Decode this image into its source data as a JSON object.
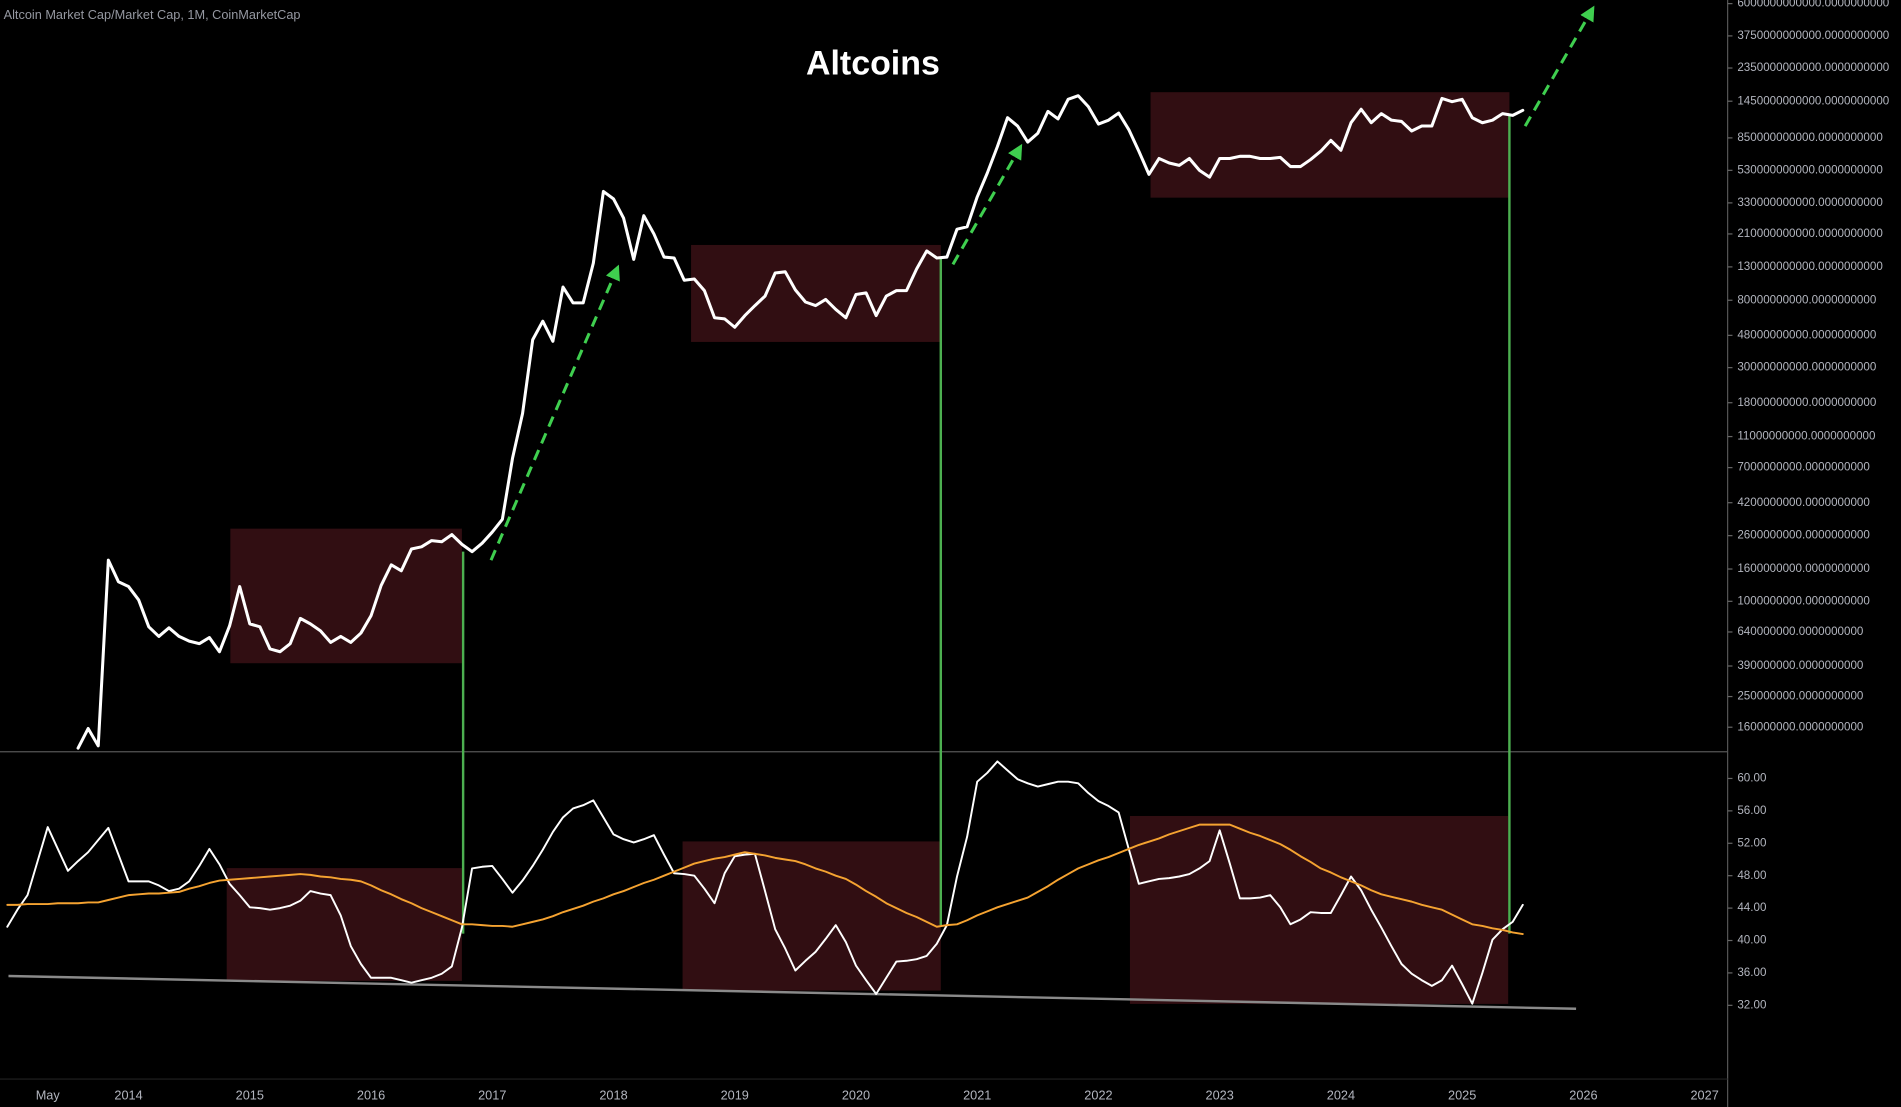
{
  "chart_data": [
    {
      "type": "line",
      "title": "Altcoins",
      "subtitle": "Altcoin Market Cap/Market Cap, 1M, CoinMarketCap",
      "log_scale": true,
      "categories": [
        null,
        null,
        null,
        null,
        null,
        "May",
        null,
        null,
        null,
        null,
        null,
        null,
        null,
        "2014",
        null,
        null,
        null,
        null,
        null,
        null,
        null,
        null,
        null,
        null,
        null,
        "2015",
        null,
        null,
        null,
        null,
        null,
        null,
        null,
        null,
        null,
        null,
        null,
        "2016",
        null,
        null,
        null,
        null,
        null,
        null,
        null,
        null,
        null,
        null,
        null,
        "2017",
        null,
        null,
        null,
        null,
        null,
        null,
        null,
        null,
        null,
        null,
        null,
        "2018",
        null,
        null,
        null,
        null,
        null,
        null,
        null,
        null,
        null,
        null,
        null,
        "2019",
        null,
        null,
        null,
        null,
        null,
        null,
        null,
        null,
        null,
        null,
        null,
        "2020",
        null,
        null,
        null,
        null,
        null,
        null,
        null,
        null,
        null,
        null,
        null,
        "2021",
        null,
        null,
        null,
        null,
        null,
        null,
        null,
        null,
        null,
        null,
        null,
        "2022",
        null,
        null,
        null,
        null,
        null,
        null,
        null,
        null,
        null,
        null,
        null,
        "2023",
        null,
        null,
        null,
        null,
        null,
        null,
        null,
        null,
        null,
        null,
        null,
        "2024",
        null,
        null,
        null,
        null,
        null,
        null,
        null,
        null,
        null,
        null,
        null,
        "2025",
        null,
        null,
        null,
        null,
        null,
        null,
        null,
        null,
        null,
        null,
        null,
        "2026",
        null,
        null,
        null,
        null,
        null,
        null,
        null,
        null,
        null,
        null,
        null,
        "2027",
        null
      ],
      "series": [
        {
          "color": "#ffffff",
          "values": [
            null,
            null,
            null,
            null,
            null,
            null,
            null,
            null,
            118000000.0,
            157000000.0,
            122000000.0,
            1820000000.0,
            1330000000.0,
            1240000000.0,
            1020000000.0,
            690000000.0,
            600000000.0,
            680000000.0,
            600000000.0,
            560000000.0,
            540000000.0,
            590000000.0,
            480000000.0,
            700000000.0,
            1240000000.0,
            720000000.0,
            690000000.0,
            500000000.0,
            480000000.0,
            540000000.0,
            780000000.0,
            720000000.0,
            650000000.0,
            550000000.0,
            600000000.0,
            550000000.0,
            630000000.0,
            810000000.0,
            1260000000.0,
            1700000000.0,
            1560000000.0,
            2140000000.0,
            2210000000.0,
            2420000000.0,
            2380000000.0,
            2640000000.0,
            2290000000.0,
            2060000000.0,
            2330000000.0,
            2740000000.0,
            3300000000.0,
            8000000000.0,
            15400000000.0,
            45000000000.0,
            59000000000.0,
            44000000000.0,
            97000000000.0,
            77000000000.0,
            77000000000.0,
            137000000000.0,
            390000000000.0,
            350000000000.0,
            264000000000.0,
            145000000000.0,
            274000000000.0,
            210000000000.0,
            150000000000.0,
            148000000000.0,
            107000000000.0,
            109000000000.0,
            92000000000.0,
            62000000000.0,
            61000000000.0,
            54000000000.0,
            64000000000.0,
            74000000000.0,
            85000000000.0,
            119000000000.0,
            121000000000.0,
            93000000000.0,
            78000000000.0,
            74000000000.0,
            81000000000.0,
            70000000000.0,
            62000000000.0,
            87000000000.0,
            89000000000.0,
            64000000000.0,
            85000000000.0,
            92000000000.0,
            92000000000.0,
            126000000000.0,
            164000000000.0,
            148000000000.0,
            150000000000.0,
            225000000000.0,
            233000000000.0,
            360000000000.0,
            510000000000.0,
            750000000000.0,
            1140000000000.0,
            1010000000000.0,
            800000000000.0,
            910000000000.0,
            1250000000000.0,
            1120000000000.0,
            1490000000000.0,
            1570000000000.0,
            1340000000000.0,
            1040000000000.0,
            1100000000000.0,
            1220000000000.0,
            960000000000.0,
            700000000000.0,
            500000000000.0,
            630000000000.0,
            590000000000.0,
            570000000000.0,
            630000000000.0,
            530000000000.0,
            480000000000.0,
            630000000000.0,
            630000000000.0,
            650000000000.0,
            650000000000.0,
            630000000000.0,
            630000000000.0,
            640000000000.0,
            560000000000.0,
            560000000000.0,
            620000000000.0,
            700000000000.0,
            820000000000.0,
            710000000000.0,
            1060000000000.0,
            1290000000000.0,
            1060000000000.0,
            1210000000000.0,
            1100000000000.0,
            1080000000000.0,
            940000000000.0,
            1010000000000.0,
            1010000000000.0,
            1510000000000.0,
            1440000000000.0,
            1490000000000.0,
            1140000000000.0,
            1060000000000.0,
            1100000000000.0,
            1210000000000.0,
            1180000000000.0,
            1270000000000.0,
            null,
            null,
            null,
            null,
            null,
            null,
            null,
            null,
            null,
            null,
            null,
            null,
            null,
            null,
            null,
            null,
            null,
            null,
            null
          ]
        }
      ],
      "ylim": [
        112000000.0,
        6320000000000.0
      ],
      "yticks": [
        {
          "value": 6000000000000,
          "label": "6000000000000.0000000000"
        },
        {
          "value": 3750000000000,
          "label": "3750000000000.0000000000"
        },
        {
          "value": 2350000000000,
          "label": "2350000000000.0000000000"
        },
        {
          "value": 1450000000000,
          "label": "1450000000000.0000000000"
        },
        {
          "value": 850000000000,
          "label": "850000000000.0000000000"
        },
        {
          "value": 530000000000,
          "label": "530000000000.0000000000"
        },
        {
          "value": 330000000000,
          "label": "330000000000.0000000000"
        },
        {
          "value": 210000000000,
          "label": "210000000000.0000000000"
        },
        {
          "value": 130000000000,
          "label": "130000000000.0000000000"
        },
        {
          "value": 80000000000,
          "label": "80000000000.0000000000"
        },
        {
          "value": 48000000000,
          "label": "48000000000.0000000000"
        },
        {
          "value": 30000000000,
          "label": "30000000000.0000000000"
        },
        {
          "value": 18000000000,
          "label": "18000000000.0000000000"
        },
        {
          "value": 11000000000,
          "label": "11000000000.0000000000"
        },
        {
          "value": 7000000000,
          "label": "7000000000.0000000000"
        },
        {
          "value": 4200000000,
          "label": "4200000000.0000000000"
        },
        {
          "value": 2600000000,
          "label": "2600000000.0000000000"
        },
        {
          "value": 1600000000,
          "label": "1600000000.0000000000"
        },
        {
          "value": 1000000000,
          "label": "1000000000.0000000000"
        },
        {
          "value": 640000000,
          "label": "640000000.0000000000"
        },
        {
          "value": 390000000,
          "label": "390000000.0000000000"
        },
        {
          "value": 250000000,
          "label": "250000000.0000000000"
        },
        {
          "value": 160000000,
          "label": "160000000.0000000000"
        }
      ]
    },
    {
      "type": "line",
      "series": [
        {
          "color": "#ffffff",
          "values": [
            null,
            41.7,
            43.8,
            45.6,
            49.8,
            54.0,
            51.3,
            48.6,
            49.8,
            50.9,
            52.4,
            53.9,
            50.6,
            47.3,
            47.3,
            47.3,
            46.8,
            46.1,
            46.4,
            47.3,
            49.2,
            51.3,
            49.4,
            47.0,
            45.6,
            44.1,
            44.0,
            43.8,
            44.0,
            44.3,
            44.9,
            46.1,
            45.8,
            45.6,
            43.1,
            39.3,
            37.1,
            35.4,
            35.4,
            35.4,
            35.1,
            34.8,
            35.1,
            35.4,
            35.9,
            36.8,
            41.6,
            48.9,
            49.1,
            49.2,
            47.6,
            45.9,
            47.4,
            49.2,
            51.2,
            53.4,
            55.2,
            56.3,
            56.7,
            57.3,
            55.2,
            53.1,
            52.5,
            52.1,
            52.5,
            53.0,
            50.6,
            48.3,
            48.2,
            48.0,
            46.4,
            44.6,
            48.3,
            50.4,
            50.6,
            50.7,
            46.1,
            41.4,
            39.0,
            36.3,
            37.5,
            38.6,
            40.2,
            41.9,
            39.8,
            36.9,
            35.1,
            33.4,
            35.4,
            37.4,
            37.5,
            37.7,
            38.1,
            39.6,
            41.9,
            47.9,
            52.8,
            59.6,
            60.7,
            62.1,
            61.0,
            59.9,
            59.4,
            59.0,
            59.3,
            59.6,
            59.6,
            59.4,
            58.2,
            57.2,
            56.6,
            55.8,
            51.3,
            47.0,
            47.3,
            47.6,
            47.7,
            47.9,
            48.2,
            48.9,
            49.8,
            53.6,
            49.5,
            45.2,
            45.2,
            45.3,
            45.6,
            44.1,
            42.0,
            42.6,
            43.5,
            43.4,
            43.4,
            45.6,
            47.9,
            46.2,
            43.8,
            41.6,
            39.3,
            37.1,
            35.9,
            35.1,
            34.4,
            35.1,
            36.9,
            34.6,
            32.2,
            36.0,
            40.1,
            41.4,
            42.3,
            44.4,
            null,
            null,
            null,
            null,
            null,
            null,
            null,
            null,
            null,
            null,
            null,
            null,
            null,
            null,
            null,
            null,
            null,
            null,
            null
          ]
        },
        {
          "color": "#f5a331",
          "values": [
            null,
            44.4,
            44.4,
            44.5,
            44.5,
            44.5,
            44.6,
            44.6,
            44.6,
            44.7,
            44.7,
            45.0,
            45.3,
            45.6,
            45.7,
            45.8,
            45.8,
            45.9,
            46.0,
            46.4,
            46.7,
            47.1,
            47.4,
            47.5,
            47.6,
            47.7,
            47.8,
            47.9,
            48.0,
            48.1,
            48.2,
            48.1,
            47.9,
            47.8,
            47.6,
            47.5,
            47.3,
            46.8,
            46.2,
            45.7,
            45.1,
            44.6,
            44.0,
            43.5,
            43.0,
            42.5,
            42.0,
            42.0,
            41.9,
            41.8,
            41.8,
            41.7,
            42.0,
            42.3,
            42.6,
            43.0,
            43.5,
            43.9,
            44.3,
            44.8,
            45.2,
            45.7,
            46.1,
            46.6,
            47.1,
            47.5,
            48.0,
            48.5,
            49.0,
            49.5,
            49.8,
            50.1,
            50.3,
            50.6,
            50.9,
            50.7,
            50.5,
            50.2,
            50.0,
            49.8,
            49.4,
            48.9,
            48.5,
            48.0,
            47.6,
            46.9,
            46.1,
            45.4,
            44.6,
            44.0,
            43.4,
            42.9,
            42.3,
            41.7,
            41.9,
            42.0,
            42.5,
            43.1,
            43.6,
            44.1,
            44.5,
            44.9,
            45.3,
            46.0,
            46.7,
            47.5,
            48.2,
            48.9,
            49.4,
            49.9,
            50.3,
            50.8,
            51.3,
            51.8,
            52.2,
            52.6,
            53.1,
            53.5,
            53.9,
            54.3,
            54.3,
            54.3,
            54.3,
            53.8,
            53.3,
            52.9,
            52.4,
            51.9,
            51.2,
            50.4,
            49.7,
            48.9,
            48.4,
            47.8,
            47.3,
            46.8,
            46.2,
            45.7,
            45.4,
            45.1,
            44.8,
            44.4,
            44.1,
            43.8,
            43.2,
            42.6,
            42.0,
            41.8,
            41.5,
            41.3,
            41.0,
            40.8,
            null,
            null,
            null,
            null,
            null,
            null,
            null,
            null,
            null,
            null,
            null,
            null,
            null,
            null,
            null,
            null,
            null,
            null,
            null
          ]
        }
      ],
      "ylim": [
        22.9,
        63.3
      ],
      "yticks": [
        {
          "value": 60,
          "label": "60.00"
        },
        {
          "value": 56,
          "label": "56.00"
        },
        {
          "value": 52,
          "label": "52.00"
        },
        {
          "value": 48,
          "label": "48.00"
        },
        {
          "value": 44,
          "label": "44.00"
        },
        {
          "value": 40,
          "label": "40.00"
        },
        {
          "value": 36,
          "label": "36.00"
        },
        {
          "value": 32,
          "label": "32.00"
        }
      ]
    }
  ]
}
